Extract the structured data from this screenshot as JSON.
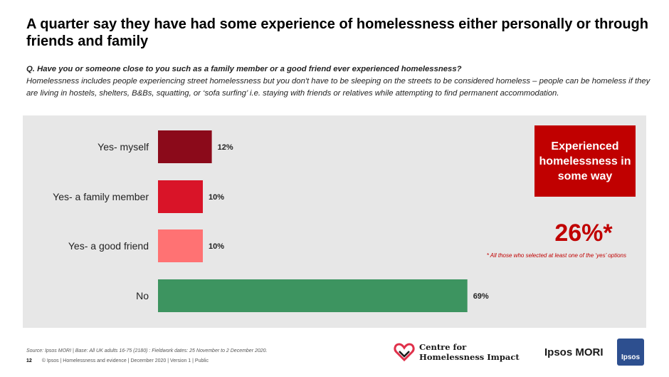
{
  "title": "A quarter say they have had some experience of homelessness either personally or through friends and family",
  "question": {
    "q": "Q. Have you or someone close to you such as a family member or a good friend ever experienced homelessness?",
    "body": "Homelessness includes people experiencing street homelessness but you don't have to be sleeping on the streets to be considered homeless – people can be homeless if they are living in hostels, shelters, B&Bs, squatting, or ‘sofa surfing’ i.e. staying with friends or relatives while attempting to find permanent accommodation."
  },
  "callout": {
    "label": "Experienced homelessness in some way",
    "value": "26%*",
    "footnote": "* All those who selected at least one of the ‘yes’ options"
  },
  "chart_data": {
    "type": "bar",
    "orientation": "horizontal",
    "categories": [
      "Yes- myself",
      "Yes- a family member",
      "Yes- a good friend",
      "No"
    ],
    "values": [
      12,
      10,
      10,
      69
    ],
    "value_labels": [
      "12%",
      "10%",
      "10%",
      "69%"
    ],
    "colors": [
      "#8b0a1a",
      "#d91428",
      "#ff7273",
      "#3d9460"
    ],
    "xlim": [
      0,
      100
    ],
    "grid": false
  },
  "source": "Source: Ipsos MORI | Base: All UK adults 16-75 (2180) : Fieldwork dates: 25 November to 2 December 2020.",
  "footer": {
    "page": "12",
    "text": "© Ipsos | Homelessness and evidence | December 2020 | Version 1 | Public"
  },
  "logos": {
    "chi_line1": "Centre for",
    "chi_line2": "Homelessness Impact",
    "ipsos_mori": "Ipsos MORI",
    "ipsos_badge": "Ipsos"
  }
}
